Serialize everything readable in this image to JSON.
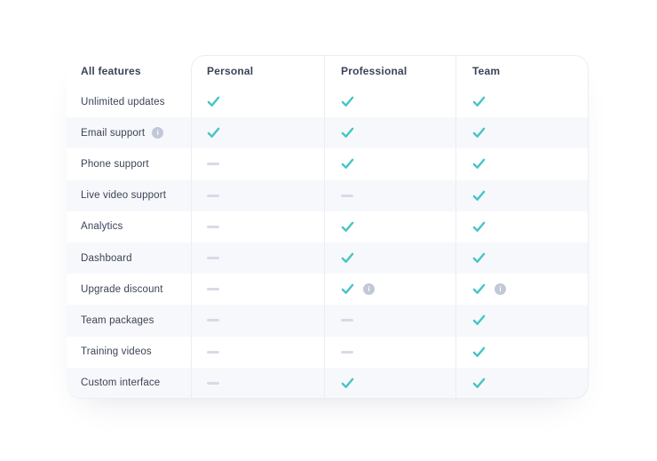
{
  "colors": {
    "page_bg": "#ffffff",
    "card_bg": "#ffffff",
    "stripe": "#f7f8fb",
    "border": "#eaedf3",
    "text": "#3b4357",
    "check": "#47c4c5",
    "dash": "#d7dbe8",
    "info_bg": "#c2c8d8",
    "info_glyph": "#ffffff"
  },
  "icons": {
    "check_icon": "✓",
    "dash_icon": "—",
    "info_icon": "i"
  },
  "table": {
    "features_header": "All features",
    "plan_headers": [
      "Personal",
      "Professional",
      "Team"
    ],
    "rows": [
      {
        "feature": "Unlimited updates",
        "feature_info": false,
        "cells": [
          "check",
          "check",
          "check"
        ]
      },
      {
        "feature": "Email support",
        "feature_info": true,
        "cells": [
          "check",
          "check",
          "check"
        ]
      },
      {
        "feature": "Phone support",
        "feature_info": false,
        "cells": [
          "dash",
          "check",
          "check"
        ]
      },
      {
        "feature": "Live video support",
        "feature_info": false,
        "cells": [
          "dash",
          "dash",
          "check"
        ]
      },
      {
        "feature": "Analytics",
        "feature_info": false,
        "cells": [
          "dash",
          "check",
          "check"
        ]
      },
      {
        "feature": "Dashboard",
        "feature_info": false,
        "cells": [
          "dash",
          "check",
          "check"
        ]
      },
      {
        "feature": "Upgrade discount",
        "feature_info": false,
        "cells": [
          "dash",
          "check_info",
          "check_info"
        ]
      },
      {
        "feature": "Team packages",
        "feature_info": false,
        "cells": [
          "dash",
          "dash",
          "check"
        ]
      },
      {
        "feature": "Training videos",
        "feature_info": false,
        "cells": [
          "dash",
          "dash",
          "check"
        ]
      },
      {
        "feature": "Custom interface",
        "feature_info": false,
        "cells": [
          "dash",
          "check",
          "check"
        ]
      }
    ]
  }
}
